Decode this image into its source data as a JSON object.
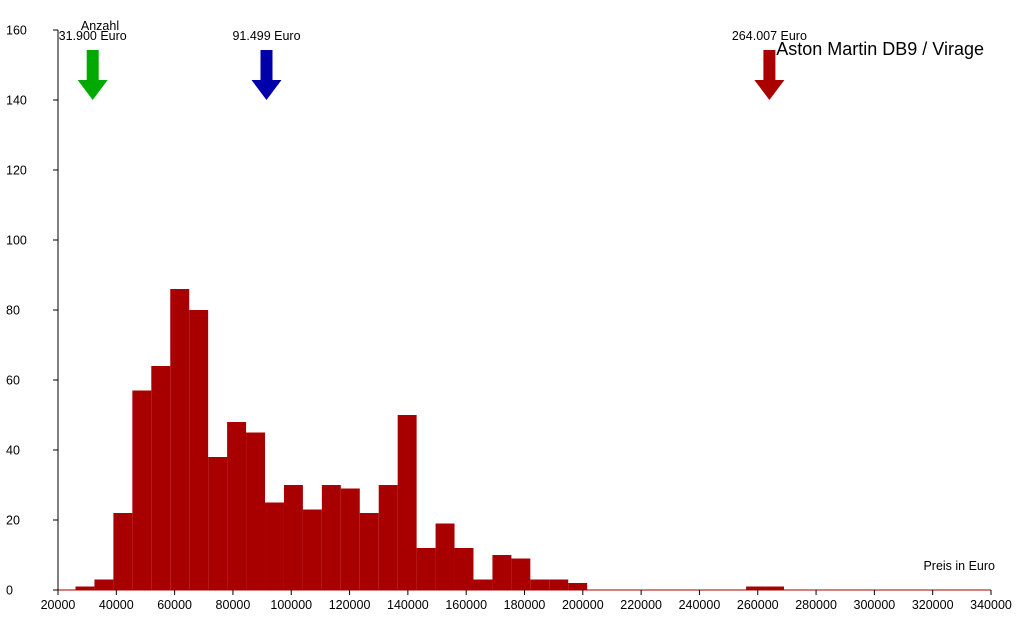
{
  "chart_data": {
    "type": "bar",
    "title": "Aston Martin DB9 / Virage",
    "xlabel": "Preis in Euro",
    "ylabel": "Anzahl",
    "xlim": [
      20000,
      340000
    ],
    "ylim": [
      0,
      160
    ],
    "x_ticks": [
      "20000",
      "40000",
      "60000",
      "80000",
      "100000",
      "120000",
      "140000",
      "160000",
      "180000",
      "200000",
      "220000",
      "240000",
      "260000",
      "280000",
      "300000",
      "320000",
      "340000"
    ],
    "y_ticks": [
      "0",
      "20",
      "40",
      "60",
      "80",
      "100",
      "120",
      "140",
      "160"
    ],
    "bar_color": "#a80000",
    "bin_width": 6500,
    "bins": [
      {
        "x0": 26000,
        "value": 1
      },
      {
        "x0": 32500,
        "value": 3
      },
      {
        "x0": 39000,
        "value": 22
      },
      {
        "x0": 45500,
        "value": 57
      },
      {
        "x0": 52000,
        "value": 64
      },
      {
        "x0": 58500,
        "value": 86
      },
      {
        "x0": 65000,
        "value": 80
      },
      {
        "x0": 71500,
        "value": 38
      },
      {
        "x0": 78000,
        "value": 48
      },
      {
        "x0": 84500,
        "value": 45
      },
      {
        "x0": 91000,
        "value": 25
      },
      {
        "x0": 97500,
        "value": 30
      },
      {
        "x0": 104000,
        "value": 23
      },
      {
        "x0": 110500,
        "value": 30
      },
      {
        "x0": 117000,
        "value": 29
      },
      {
        "x0": 123500,
        "value": 22
      },
      {
        "x0": 130000,
        "value": 30
      },
      {
        "x0": 136500,
        "value": 50
      },
      {
        "x0": 143000,
        "value": 12
      },
      {
        "x0": 149500,
        "value": 19
      },
      {
        "x0": 156000,
        "value": 12
      },
      {
        "x0": 162500,
        "value": 3
      },
      {
        "x0": 169000,
        "value": 10
      },
      {
        "x0": 175500,
        "value": 9
      },
      {
        "x0": 182000,
        "value": 3
      },
      {
        "x0": 188500,
        "value": 3
      },
      {
        "x0": 195000,
        "value": 2
      },
      {
        "x0": 256000,
        "value": 1
      },
      {
        "x0": 262500,
        "value": 1
      }
    ],
    "annotations": [
      {
        "label": "31.900 Euro",
        "value": 31900,
        "color": "#00aa00"
      },
      {
        "label": "91.499 Euro",
        "value": 91499,
        "color": "#0000aa"
      },
      {
        "label": "264.007 Euro",
        "value": 264007,
        "color": "#aa0000"
      }
    ]
  }
}
